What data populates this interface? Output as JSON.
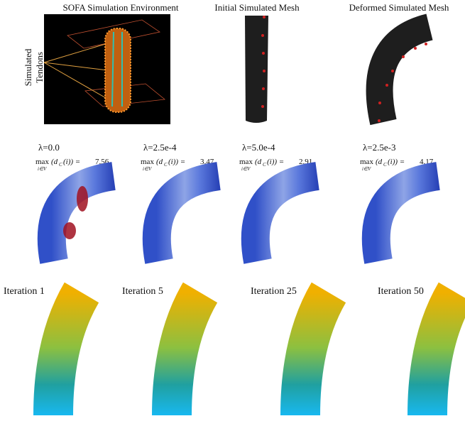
{
  "header": {
    "titles": [
      "SOFA Simulation Environment",
      "Initial Simulated Mesh",
      "Deformed Simulated Mesh"
    ],
    "side_label": [
      "Simulated",
      "Tendons"
    ]
  },
  "formula": {
    "func": "max",
    "under": "i∈V",
    "arg": "(d",
    "sub": "C",
    "tail": "(i)) =",
    "panels": [
      {
        "lambda": "λ=0.0",
        "value": "7.56"
      },
      {
        "lambda": "λ=2.5e-4",
        "value": "3.47"
      },
      {
        "lambda": "λ=5.0e-4",
        "value": "2.91"
      },
      {
        "lambda": "λ=2.5e-3",
        "value": "4.17"
      }
    ]
  },
  "iterations": [
    "Iteration 1",
    "Iteration 5",
    "Iteration 25",
    "Iteration 50"
  ]
}
